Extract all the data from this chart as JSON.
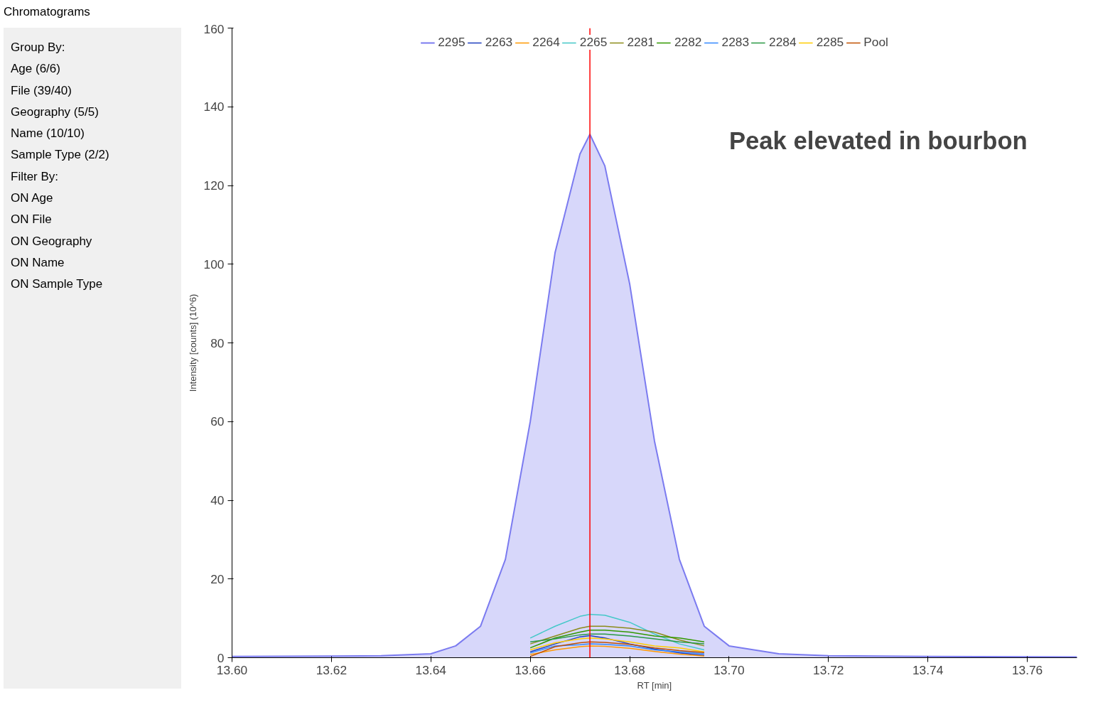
{
  "chart_data": {
    "type": "line",
    "title": "Chromatograms",
    "xlabel": "RT [min]",
    "ylabel": "Intensity [counts] (10^6)",
    "annotations": [
      "Peak elevated in bourbon",
      "Group By:",
      "Age (6/6)",
      "File (39/40)",
      "Geography (5/5)",
      "Name (10/10)",
      "Sample Type (2/2)",
      "Filter By:",
      "ON Age",
      "ON File",
      "ON Geography",
      "ON Name",
      "ON Sample Type"
    ],
    "x": [
      13.6,
      13.62,
      13.63,
      13.64,
      13.645,
      13.65,
      13.655,
      13.66,
      13.665,
      13.67,
      13.672,
      13.675,
      13.68,
      13.685,
      13.69,
      13.695,
      13.7,
      13.71,
      13.72,
      13.74,
      13.77
    ],
    "series": [
      {
        "name": "2295",
        "color": "#7b7bf0",
        "type": "area",
        "values": [
          0.3,
          0.4,
          0.5,
          1,
          3,
          8,
          25,
          60,
          103,
          128,
          133,
          125,
          95,
          55,
          25,
          8,
          3,
          1,
          0.5,
          0.3,
          0.2
        ]
      },
      {
        "name": "2263",
        "color": "#1f3fbf",
        "values": [
          null,
          null,
          null,
          null,
          null,
          null,
          null,
          1.5,
          3.5,
          5.3,
          5.6,
          5,
          3.5,
          2.2,
          1.2,
          0.6,
          null,
          null,
          null,
          null,
          null
        ]
      },
      {
        "name": "2264",
        "color": "#ff9900",
        "values": [
          null,
          null,
          null,
          null,
          null,
          null,
          null,
          0.8,
          2,
          2.8,
          3,
          2.9,
          2.4,
          1.6,
          0.9,
          0.4,
          null,
          null,
          null,
          null,
          null
        ]
      },
      {
        "name": "2265",
        "color": "#44c8c8",
        "values": [
          null,
          null,
          null,
          null,
          null,
          null,
          null,
          5,
          8,
          10.5,
          11,
          10.8,
          9,
          6,
          3.5,
          2,
          null,
          null,
          null,
          null,
          null
        ]
      },
      {
        "name": "2281",
        "color": "#8c8c1a",
        "values": [
          null,
          null,
          null,
          null,
          null,
          null,
          null,
          3.5,
          5.5,
          7.5,
          8,
          8,
          7.5,
          6.5,
          4.5,
          3,
          null,
          null,
          null,
          null,
          null
        ]
      },
      {
        "name": "2282",
        "color": "#339900",
        "values": [
          null,
          null,
          null,
          null,
          null,
          null,
          null,
          2.5,
          5,
          6.5,
          7,
          7,
          6.5,
          5.5,
          5,
          4,
          null,
          null,
          null,
          null,
          null
        ]
      },
      {
        "name": "2283",
        "color": "#3388ff",
        "values": [
          null,
          null,
          null,
          null,
          null,
          null,
          null,
          1.2,
          3,
          3.3,
          3.5,
          3.4,
          3,
          2,
          1.5,
          1,
          null,
          null,
          null,
          null,
          null
        ]
      },
      {
        "name": "2284",
        "color": "#2a9944",
        "values": [
          null,
          null,
          null,
          null,
          null,
          null,
          null,
          4,
          4.8,
          5.8,
          6,
          6,
          5.5,
          4.8,
          4,
          3.5,
          null,
          null,
          null,
          null,
          null
        ]
      },
      {
        "name": "2285",
        "color": "#ffcc00",
        "values": [
          null,
          null,
          null,
          null,
          null,
          null,
          null,
          2,
          3.8,
          4.8,
          5,
          4.8,
          4,
          3,
          2.5,
          1.5,
          null,
          null,
          null,
          null,
          null
        ]
      },
      {
        "name": "Pool",
        "color": "#c05000",
        "values": [
          null,
          null,
          null,
          null,
          null,
          null,
          null,
          0.3,
          2.8,
          3.8,
          4,
          3.9,
          3.4,
          2.5,
          1.8,
          1.3,
          null,
          null,
          null,
          null,
          null
        ]
      }
    ],
    "xlim": [
      13.6,
      13.77
    ],
    "ylim": [
      0,
      160
    ],
    "xticks": [
      {
        "value": 13.6,
        "label": "13.60"
      },
      {
        "value": 13.62,
        "label": "13.62"
      },
      {
        "value": 13.64,
        "label": "13.64"
      },
      {
        "value": 13.66,
        "label": "13.66"
      },
      {
        "value": 13.68,
        "label": "13.68"
      },
      {
        "value": 13.7,
        "label": "13.70"
      },
      {
        "value": 13.72,
        "label": "13.72"
      },
      {
        "value": 13.74,
        "label": "13.74"
      },
      {
        "value": 13.76,
        "label": "13.76"
      }
    ],
    "yticks": [
      0,
      20,
      40,
      60,
      80,
      100,
      120,
      140,
      160
    ],
    "ref_lines": [
      {
        "axis": "x",
        "value": 13.672,
        "color": "#ff0000"
      }
    ],
    "grid": false,
    "legend": "top"
  }
}
